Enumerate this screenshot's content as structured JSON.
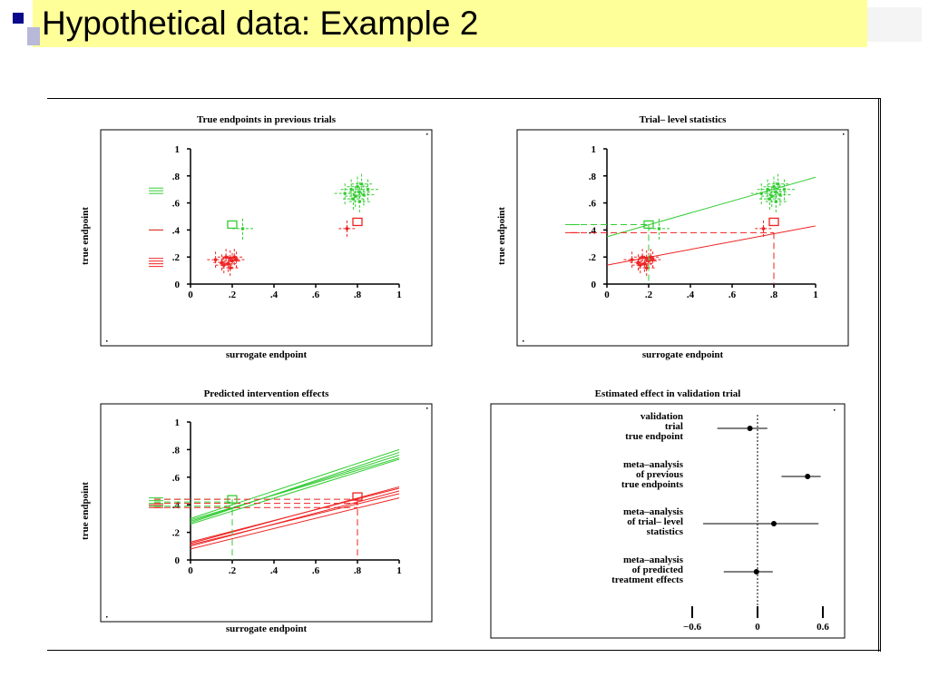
{
  "slide": {
    "title": "Hypothetical data: Example 2"
  },
  "colors": {
    "treatment": "#33cc33",
    "control": "#ee2222",
    "title_bg": "#ffff99",
    "bullet": "#0a0a8c"
  },
  "chart_data": [
    {
      "type": "scatter",
      "title": "True endpoints in previous trials",
      "xlabel": "surrogate endpoint",
      "ylabel": "true endpoint",
      "xlim": [
        0,
        1
      ],
      "ylim": [
        0,
        1
      ],
      "xticks": [
        "0",
        ".2",
        ".4",
        ".6",
        ".8",
        "1"
      ],
      "yticks": [
        "0",
        ".2",
        ".4",
        ".6",
        ".8",
        "1"
      ],
      "series": [
        {
          "color": "treatment",
          "x": [
            0.74,
            0.77,
            0.79,
            0.8,
            0.81,
            0.82,
            0.83,
            0.85,
            0.78,
            0.81,
            0.25
          ],
          "y": [
            0.67,
            0.7,
            0.65,
            0.72,
            0.68,
            0.74,
            0.66,
            0.7,
            0.63,
            0.61,
            0.41
          ],
          "xerr": 0.05,
          "yerr": 0.08
        },
        {
          "color": "control",
          "x": [
            0.12,
            0.15,
            0.17,
            0.18,
            0.19,
            0.2,
            0.21,
            0.22,
            0.16,
            0.19,
            0.75
          ],
          "y": [
            0.18,
            0.16,
            0.2,
            0.15,
            0.19,
            0.17,
            0.2,
            0.18,
            0.14,
            0.12,
            0.41
          ],
          "xerr": 0.04,
          "yerr": 0.06
        }
      ],
      "validation_markers": [
        {
          "color": "treatment",
          "x": 0.2,
          "y": 0.44
        },
        {
          "color": "control",
          "x": 0.8,
          "y": 0.46
        }
      ],
      "rug_y": {
        "treatment": [
          0.67,
          0.69,
          0.71,
          0.4
        ],
        "control": [
          0.4,
          0.17,
          0.15,
          0.19,
          0.13
        ]
      }
    },
    {
      "type": "scatter",
      "title": "Trial– level statistics",
      "xlabel": "surrogate endpoint",
      "ylabel": "true endpoint",
      "xlim": [
        0,
        1
      ],
      "ylim": [
        0,
        1
      ],
      "xticks": [
        "0",
        ".2",
        ".4",
        ".6",
        ".8",
        "1"
      ],
      "yticks": [
        "0",
        ".2",
        ".4",
        ".6",
        ".8",
        "1"
      ],
      "series": [
        {
          "color": "treatment",
          "x": [
            0.74,
            0.77,
            0.79,
            0.8,
            0.81,
            0.82,
            0.83,
            0.85,
            0.78,
            0.81,
            0.25
          ],
          "y": [
            0.67,
            0.7,
            0.65,
            0.72,
            0.68,
            0.74,
            0.66,
            0.7,
            0.63,
            0.61,
            0.41
          ],
          "xerr": 0.05,
          "yerr": 0.08
        },
        {
          "color": "control",
          "x": [
            0.12,
            0.15,
            0.17,
            0.18,
            0.19,
            0.2,
            0.21,
            0.22,
            0.16,
            0.19,
            0.75
          ],
          "y": [
            0.18,
            0.16,
            0.2,
            0.15,
            0.19,
            0.17,
            0.2,
            0.18,
            0.14,
            0.12,
            0.41
          ],
          "xerr": 0.04,
          "yerr": 0.06
        }
      ],
      "fit_lines": [
        {
          "color": "treatment",
          "x": [
            0,
            1
          ],
          "y": [
            0.35,
            0.79
          ]
        },
        {
          "color": "control",
          "x": [
            0,
            1
          ],
          "y": [
            0.14,
            0.43
          ]
        }
      ],
      "validation_markers": [
        {
          "color": "treatment",
          "x": 0.2,
          "y": 0.44
        },
        {
          "color": "control",
          "x": 0.8,
          "y": 0.46
        }
      ],
      "reference_lines": [
        {
          "color": "treatment",
          "x": 0.2,
          "y": 0.44
        },
        {
          "color": "control",
          "x": 0.8,
          "y": 0.38
        }
      ],
      "rug_y": {
        "treatment": [
          0.44
        ],
        "control": [
          0.38
        ]
      }
    },
    {
      "type": "line",
      "title": "Predicted intervention effects",
      "xlabel": "surrogate endpoint",
      "ylabel": "true endpoint",
      "xlim": [
        0,
        1
      ],
      "ylim": [
        0,
        1
      ],
      "xticks": [
        "0",
        ".2",
        ".4",
        ".6",
        ".8",
        "1"
      ],
      "yticks": [
        "0",
        ".2",
        ".4",
        ".6",
        ".8",
        "1"
      ],
      "series": [
        {
          "color": "treatment",
          "lines": [
            [
              0.3,
              0.8
            ],
            [
              0.28,
              0.76
            ],
            [
              0.26,
              0.73
            ],
            [
              0.27,
              0.78
            ],
            [
              0.29,
              0.74
            ]
          ]
        },
        {
          "color": "control",
          "lines": [
            [
              0.12,
              0.53
            ],
            [
              0.1,
              0.5
            ],
            [
              0.11,
              0.48
            ],
            [
              0.08,
              0.45
            ],
            [
              0.13,
              0.52
            ]
          ]
        }
      ],
      "validation_markers": [
        {
          "color": "treatment",
          "x": 0.2,
          "y": 0.44
        },
        {
          "color": "control",
          "x": 0.8,
          "y": 0.46
        }
      ],
      "reference_lines": [
        {
          "color": "treatment",
          "x": 0.2,
          "y": [
            0.39,
            0.42,
            0.44
          ]
        },
        {
          "color": "control",
          "x": 0.8,
          "y": [
            0.38,
            0.41,
            0.44
          ]
        }
      ],
      "rug_y": {
        "treatment": [
          0.39,
          0.41,
          0.43,
          0.45
        ],
        "control": [
          0.38,
          0.4
        ]
      }
    },
    {
      "type": "forest",
      "title": "Estimated effect in validation trial",
      "xlim": [
        -0.6,
        0.6
      ],
      "xticks": [
        "−0.6",
        "0",
        "0.6"
      ],
      "rows": [
        {
          "label": [
            "validation",
            "trial",
            "true endpoint"
          ],
          "estimate": -0.07,
          "lo": -0.37,
          "hi": 0.09
        },
        {
          "label": [
            "meta–analysis",
            "of previous",
            "true endpoints"
          ],
          "estimate": 0.46,
          "lo": 0.22,
          "hi": 0.58
        },
        {
          "label": [
            "meta–analysis",
            "of trial– level",
            "statistics"
          ],
          "estimate": 0.15,
          "lo": -0.5,
          "hi": 0.56
        },
        {
          "label": [
            "meta–analysis",
            "of predicted",
            "treatment effects"
          ],
          "estimate": -0.01,
          "lo": -0.31,
          "hi": 0.14
        }
      ]
    }
  ]
}
